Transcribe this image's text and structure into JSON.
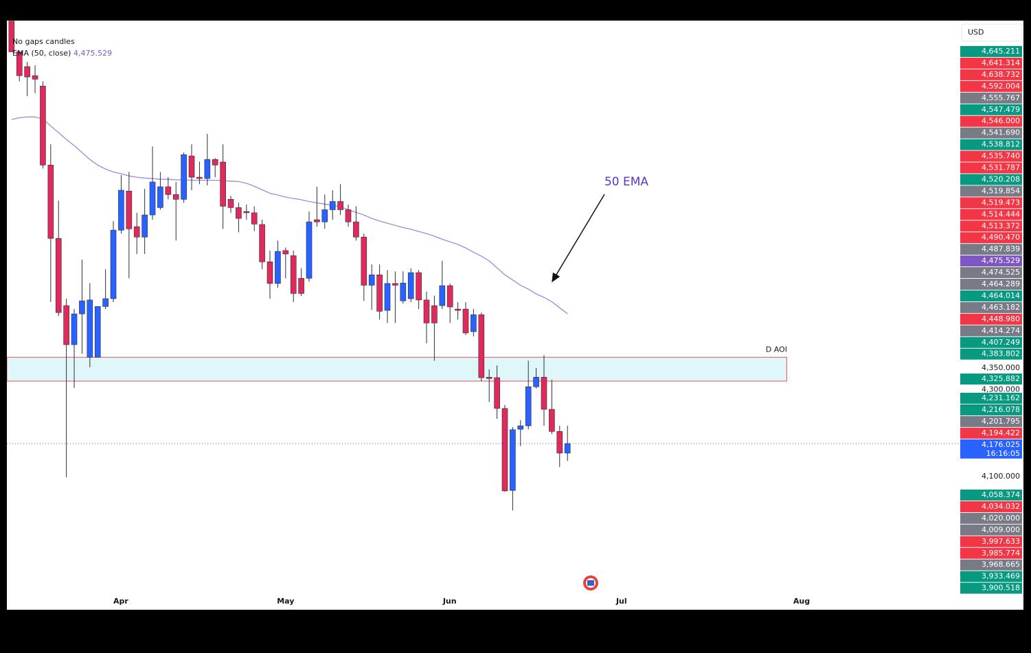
{
  "chart_data": {
    "type": "candlestick",
    "currency": "USD",
    "legend_title": "No gaps candles",
    "legend_value": {
      "value": 4475.529,
      "label": "4,475.529"
    },
    "annotation": "50 EMA",
    "countdown": "16:16:05",
    "xlim": [
      -0.6,
      120.9
    ],
    "xticks": [
      {
        "value": 13.95,
        "label": "Apr"
      },
      {
        "value": 35.0,
        "label": "May"
      },
      {
        "value": 55.96,
        "label": "Jun"
      },
      {
        "value": 77.9,
        "label": "Jul"
      },
      {
        "value": 100.9,
        "label": "Aug"
      }
    ],
    "ylim": [
      3793,
      5151
    ],
    "yticks": [
      {
        "value": 4100,
        "label": "4,100.000"
      },
      {
        "value": 4300,
        "label": "4,300.000"
      },
      {
        "value": 4350,
        "label": "4,350.000"
      }
    ],
    "up_color": "#2962ff",
    "down_color": "#e02a5c",
    "open": [
      5150,
      5079,
      5045,
      5024,
      5000,
      4818,
      4649,
      4494,
      4404,
      4475,
      4375,
      4375,
      4492,
      4510,
      4668,
      4758,
      4676,
      4652,
      4703,
      4720,
      4768,
      4750,
      4739,
      4839,
      4790,
      4787,
      4831,
      4825,
      4739,
      4720,
      4711,
      4708,
      4681,
      4595,
      4545,
      4621,
      4609,
      4557,
      4557,
      4692,
      4687,
      4715,
      4734,
      4715,
      4687,
      4652,
      4541,
      4565,
      4483,
      4545,
      4505,
      4510,
      4570,
      4507,
      4494,
      4494,
      4540,
      4486,
      4486,
      4434,
      4473,
      4329,
      4328,
      4257,
      4068,
      4209,
      4217,
      4307,
      4329,
      4255,
      4204,
      4154
    ],
    "high": [
      5150,
      5079,
      5056,
      5048,
      5011,
      4866,
      4736,
      4510,
      4486,
      4600,
      4546,
      4492,
      4578,
      4689,
      4795,
      4802,
      4708,
      4763,
      4861,
      4802,
      4790,
      4779,
      4847,
      4866,
      4826,
      4890,
      4834,
      4866,
      4747,
      4731,
      4727,
      4723,
      4692,
      4621,
      4644,
      4628,
      4621,
      4580,
      4711,
      4768,
      4750,
      4760,
      4774,
      4727,
      4723,
      4660,
      4589,
      4589,
      4576,
      4573,
      4573,
      4580,
      4576,
      4526,
      4517,
      4597,
      4545,
      4502,
      4502,
      4486,
      4478,
      4347,
      4356,
      4265,
      4214,
      4230,
      4367,
      4350,
      4380,
      4323,
      4217,
      4217
    ],
    "low": [
      5079,
      5011,
      4977,
      4984,
      4810,
      4502,
      4470,
      4098,
      4304,
      4383,
      4352,
      4375,
      4486,
      4502,
      4660,
      4557,
      4613,
      4613,
      4692,
      4715,
      4739,
      4644,
      4731,
      4760,
      4774,
      4771,
      4790,
      4671,
      4708,
      4663,
      4692,
      4666,
      4578,
      4510,
      4535,
      4557,
      4502,
      4516,
      4549,
      4676,
      4671,
      4692,
      4703,
      4676,
      4644,
      4505,
      4484,
      4462,
      4454,
      4454,
      4499,
      4502,
      4486,
      4407,
      4367,
      4486,
      4454,
      4462,
      4426,
      4423,
      4320,
      4272,
      4233,
      4065,
      4022,
      4170,
      4209,
      4303,
      4217,
      4198,
      4122,
      4136
    ],
    "close": [
      5079,
      5024,
      5021,
      5016,
      4818,
      4649,
      4478,
      4404,
      4475,
      4505,
      4507,
      4492,
      4510,
      4668,
      4760,
      4671,
      4652,
      4703,
      4779,
      4768,
      4750,
      4739,
      4842,
      4790,
      4787,
      4831,
      4818,
      4723,
      4720,
      4695,
      4708,
      4682,
      4595,
      4545,
      4619,
      4613,
      4522,
      4522,
      4687,
      4687,
      4715,
      4734,
      4715,
      4687,
      4652,
      4541,
      4565,
      4481,
      4545,
      4541,
      4546,
      4570,
      4507,
      4454,
      4454,
      4540,
      4491,
      4483,
      4431,
      4473,
      4328,
      4326,
      4257,
      4067,
      4208,
      4217,
      4307,
      4329,
      4255,
      4204,
      4154,
      4176.025
    ],
    "series": [
      {
        "name": "EMA (50, close)",
        "color": "#9c8ade",
        "values": [
          4923,
          4927,
          4929,
          4929,
          4924,
          4908,
          4893,
          4877,
          4863,
          4847,
          4831,
          4818,
          4809,
          4802,
          4798,
          4793,
          4790,
          4788,
          4787,
          4785,
          4785,
          4784,
          4784,
          4783,
          4783,
          4783,
          4783,
          4782,
          4781,
          4780,
          4776,
          4769,
          4761,
          4753,
          4749,
          4744,
          4741,
          4738,
          4734,
          4731,
          4728,
          4725,
          4722,
          4715,
          4709,
          4703,
          4695,
          4689,
          4684,
          4679,
          4674,
          4670,
          4665,
          4660,
          4654,
          4647,
          4641,
          4635,
          4627,
          4617,
          4608,
          4597,
          4581,
          4565,
          4553,
          4541,
          4532,
          4521,
          4513,
          4503,
          4489,
          4475.529
        ]
      }
    ],
    "zone": {
      "label": "D AOI",
      "top": 4375,
      "bottom": 4320,
      "end": 99.0
    },
    "price_tags": [
      {
        "value": 4645.211,
        "label": "4,645.211",
        "color": "#089981"
      },
      {
        "value": 4641.314,
        "label": "4,641.314",
        "color": "#f23645"
      },
      {
        "value": 4638.732,
        "label": "4,638.732",
        "color": "#f23645"
      },
      {
        "value": 4592.004,
        "label": "4,592.004",
        "color": "#f23645"
      },
      {
        "value": 4555.767,
        "label": "4,555.767",
        "color": "#787b86"
      },
      {
        "value": 4547.479,
        "label": "4,547.479",
        "color": "#089981"
      },
      {
        "value": 4546.0,
        "label": "4,546.000",
        "color": "#f23645"
      },
      {
        "value": 4541.69,
        "label": "4,541.690",
        "color": "#787b86"
      },
      {
        "value": 4538.812,
        "label": "4,538.812",
        "color": "#089981"
      },
      {
        "value": 4535.74,
        "label": "4,535.740",
        "color": "#f23645"
      },
      {
        "value": 4531.787,
        "label": "4,531.787",
        "color": "#f23645"
      },
      {
        "value": 4520.208,
        "label": "4,520.208",
        "color": "#089981"
      },
      {
        "value": 4519.854,
        "label": "4,519.854",
        "color": "#787b86"
      },
      {
        "value": 4519.473,
        "label": "4,519.473",
        "color": "#f23645"
      },
      {
        "value": 4514.444,
        "label": "4,514.444",
        "color": "#f23645"
      },
      {
        "value": 4513.372,
        "label": "4,513.372",
        "color": "#f23645"
      },
      {
        "value": 4490.47,
        "label": "4,490.470",
        "color": "#f23645"
      },
      {
        "value": 4487.839,
        "label": "4,487.839",
        "color": "#787b86"
      },
      {
        "value": 4475.529,
        "label": "4,475.529",
        "color": "#7e57c2"
      },
      {
        "value": 4474.525,
        "label": "4,474.525",
        "color": "#787b86"
      },
      {
        "value": 4464.289,
        "label": "4,464.289",
        "color": "#787b86"
      },
      {
        "value": 4464.014,
        "label": "4,464.014",
        "color": "#089981"
      },
      {
        "value": 4463.182,
        "label": "4,463.182",
        "color": "#787b86"
      },
      {
        "value": 4448.98,
        "label": "4,448.980",
        "color": "#f23645"
      },
      {
        "value": 4414.274,
        "label": "4,414.274",
        "color": "#787b86"
      },
      {
        "value": 4407.249,
        "label": "4,407.249",
        "color": "#089981"
      },
      {
        "value": 4383.802,
        "label": "4,383.802",
        "color": "#089981"
      },
      {
        "value": 4325.882,
        "label": "4,325.882",
        "color": "#089981"
      },
      {
        "value": 4231.162,
        "label": "4,231.162",
        "color": "#089981"
      },
      {
        "value": 4216.078,
        "label": "4,216.078",
        "color": "#089981"
      },
      {
        "value": 4201.795,
        "label": "4,201.795",
        "color": "#787b86"
      },
      {
        "value": 4194.422,
        "label": "4,194.422",
        "color": "#f23645"
      },
      {
        "value": 4176.025,
        "label": "4,176.025",
        "color": "#2962ff"
      },
      {
        "value": 4058.374,
        "label": "4,058.374",
        "color": "#089981"
      },
      {
        "value": 4034.032,
        "label": "4,034.032",
        "color": "#f23645"
      },
      {
        "value": 4020.0,
        "label": "4,020.000",
        "color": "#787b86"
      },
      {
        "value": 4009.0,
        "label": "4,009.000",
        "color": "#787b86"
      },
      {
        "value": 3997.633,
        "label": "3,997.633",
        "color": "#f23645"
      },
      {
        "value": 3985.774,
        "label": "3,985.774",
        "color": "#f23645"
      },
      {
        "value": 3968.665,
        "label": "3,968.665",
        "color": "#787b86"
      },
      {
        "value": 3933.469,
        "label": "3,933.469",
        "color": "#089981"
      },
      {
        "value": 3900.518,
        "label": "3,900.518",
        "color": "#089981"
      }
    ]
  }
}
